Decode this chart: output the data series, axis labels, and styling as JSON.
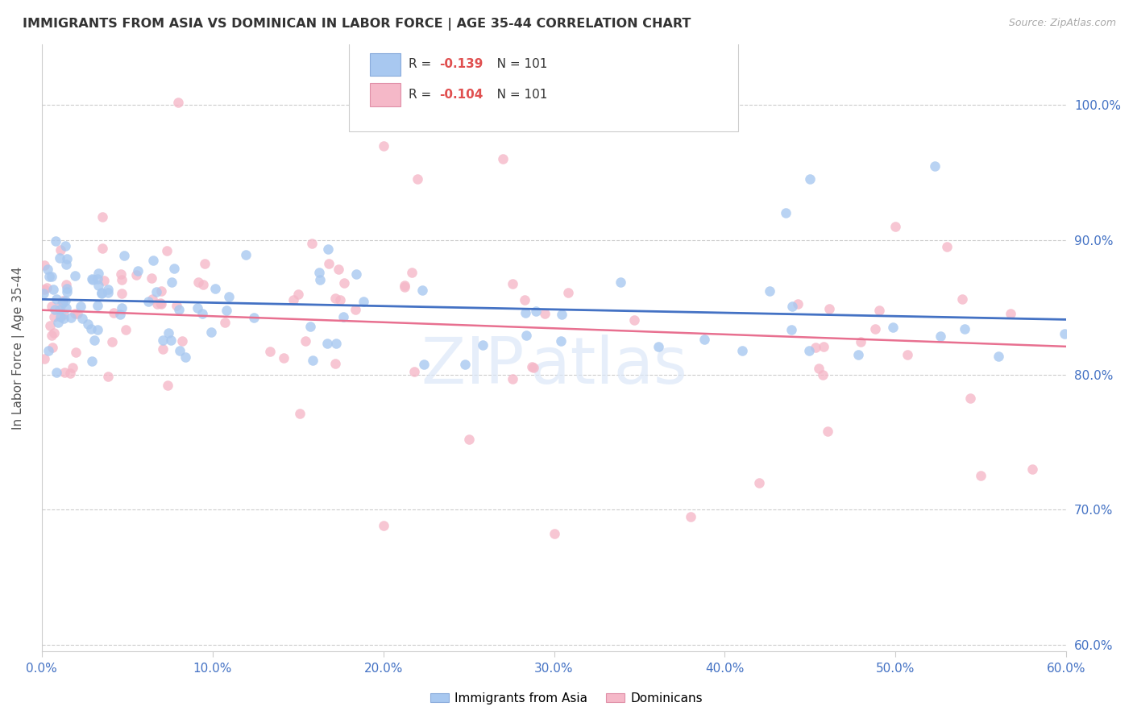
{
  "title": "IMMIGRANTS FROM ASIA VS DOMINICAN IN LABOR FORCE | AGE 35-44 CORRELATION CHART",
  "source": "Source: ZipAtlas.com",
  "ylabel": "In Labor Force | Age 35-44",
  "legend_asia": "Immigrants from Asia",
  "legend_dom": "Dominicans",
  "r_asia": "-0.139",
  "n_asia": "101",
  "r_dom": "-0.104",
  "n_dom": "101",
  "xlim": [
    0.0,
    0.6
  ],
  "ylim": [
    0.595,
    1.045
  ],
  "xticks": [
    0.0,
    0.1,
    0.2,
    0.3,
    0.4,
    0.5,
    0.6
  ],
  "yticks_right": [
    0.6,
    0.7,
    0.8,
    0.9,
    1.0
  ],
  "color_asia": "#a8c8f0",
  "color_dom": "#f5b8c8",
  "line_color_asia": "#4472c4",
  "line_color_dom": "#e87090",
  "title_fontsize": 11.5,
  "source_fontsize": 9,
  "tick_fontsize": 11,
  "legend_fontsize": 11
}
